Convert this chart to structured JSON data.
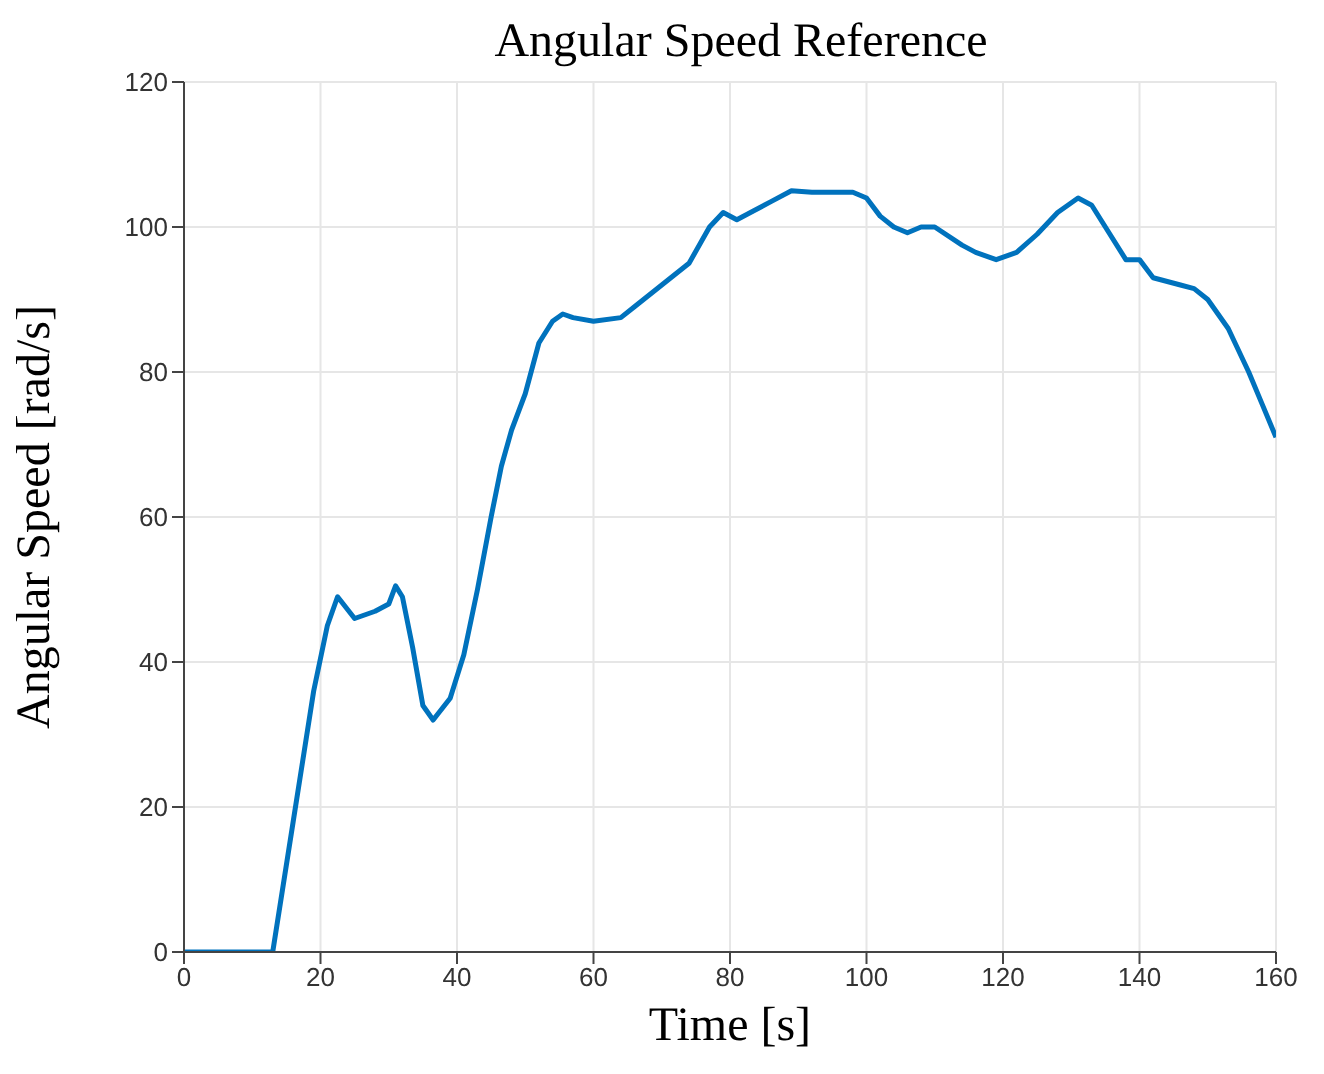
{
  "chart_data": {
    "type": "line",
    "title": "Angular Speed Reference",
    "xlabel": "Time [s]",
    "ylabel": "Angular Speed [rad/s]",
    "x": [
      0,
      13,
      16,
      19,
      21,
      22.5,
      25,
      28,
      30,
      31,
      32,
      33.5,
      35,
      36.5,
      39,
      41,
      43,
      45,
      46.5,
      48,
      50,
      52,
      54,
      55.5,
      57,
      60,
      64,
      66,
      70,
      74,
      77,
      79,
      81,
      83,
      86,
      89,
      92,
      98,
      100,
      102,
      104,
      106,
      108,
      110,
      114,
      116,
      119,
      122,
      125,
      128,
      131,
      133,
      135,
      138,
      140,
      142,
      146,
      148,
      150,
      153,
      156,
      158,
      160
    ],
    "series": [
      {
        "color": "#0072bd",
        "values": [
          0,
          0,
          18,
          36,
          45,
          49,
          46,
          47,
          48,
          50.5,
          49,
          42,
          34,
          32,
          35,
          41,
          50,
          60,
          67,
          72,
          77,
          84,
          87,
          88,
          87.5,
          87,
          87.5,
          89,
          92,
          95,
          100,
          102,
          101,
          102,
          103.5,
          105,
          104.8,
          104.8,
          104,
          101.5,
          100,
          99.2,
          100,
          100,
          97.5,
          96.5,
          95.5,
          96.5,
          99,
          102,
          104,
          103,
          100,
          95.5,
          95.5,
          93,
          92,
          91.5,
          90,
          86,
          80,
          75.5,
          71
        ]
      }
    ],
    "xlim": [
      0,
      160
    ],
    "xticks": [
      0,
      20,
      40,
      60,
      80,
      100,
      120,
      140,
      160
    ],
    "ylim": [
      0,
      120
    ],
    "yticks": [
      0,
      20,
      40,
      60,
      80,
      100,
      120
    ],
    "grid": true,
    "legend": false,
    "marker": "none",
    "line_style": "solid"
  }
}
